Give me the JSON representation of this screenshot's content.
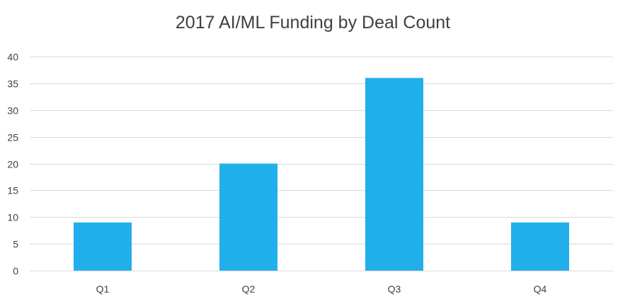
{
  "chart_data": {
    "type": "bar",
    "title": "2017 AI/ML Funding by Deal Count",
    "xlabel": "",
    "ylabel": "",
    "categories": [
      "Q1",
      "Q2",
      "Q3",
      "Q4"
    ],
    "values": [
      9,
      20,
      36,
      9
    ],
    "ylim": [
      0,
      40
    ],
    "yticks": [
      0,
      5,
      10,
      15,
      20,
      25,
      30,
      35,
      40
    ],
    "grid": true,
    "legend": "none",
    "colors": {
      "bar": "#21AFEC",
      "grid": "#D9D9D9",
      "text": "#404040"
    }
  }
}
